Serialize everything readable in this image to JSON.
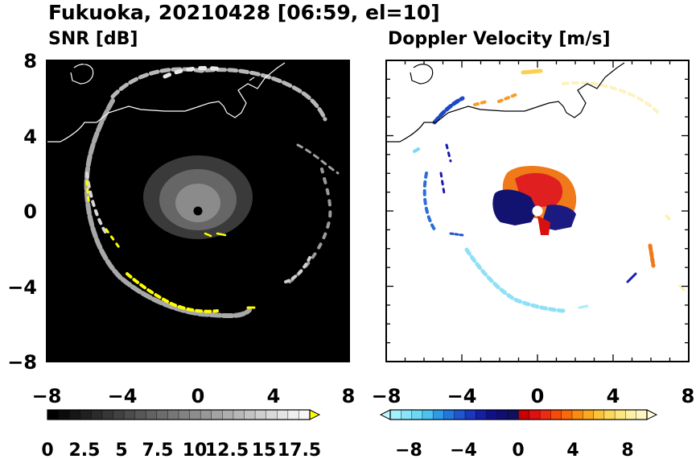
{
  "title": "Fukuoka, 20210428 [06:59, el=10]",
  "chart_data": [
    {
      "type": "heatmap",
      "title": "SNR [dB]",
      "x_ticks": [
        "−8",
        "−4",
        "0",
        "4",
        "8"
      ],
      "y_ticks": [
        "8",
        "4",
        "0",
        "−4",
        "−8"
      ],
      "xlim": [
        -8,
        8
      ],
      "ylim": [
        -8,
        8
      ],
      "background": "#000000",
      "colorbar": {
        "labels": [
          "0",
          "2.5",
          "5",
          "7.5",
          "10",
          "12.5",
          "15",
          "17.5"
        ],
        "range": [
          0,
          18
        ],
        "extend": "max",
        "extend_color": "#ffff00",
        "colors": [
          "#000000",
          "#0b0b0b",
          "#161616",
          "#202020",
          "#2b2b2b",
          "#363636",
          "#414141",
          "#4c4c4c",
          "#575757",
          "#626262",
          "#6c6c6c",
          "#777777",
          "#828282",
          "#8d8d8d",
          "#989898",
          "#a3a3a3",
          "#aeaeae",
          "#b8b8b8",
          "#c3c3c3",
          "#cecece",
          "#d9d9d9",
          "#e4e4e4",
          "#efefef",
          "#f7f7f7"
        ]
      }
    },
    {
      "type": "heatmap",
      "title": "Doppler Velocity [m/s]",
      "x_ticks": [
        "−8",
        "−4",
        "0",
        "4",
        "8"
      ],
      "y_ticks": [],
      "xlim": [
        -8,
        8
      ],
      "ylim": [
        -8,
        8
      ],
      "background": "#ffffff",
      "colorbar": {
        "labels": [
          "−8",
          "−4",
          "0",
          "4",
          "8"
        ],
        "range": [
          -10,
          10
        ],
        "extend": "both",
        "extend_low_color": "#bdf6ff",
        "extend_high_color": "#ffffd9",
        "colors": [
          "#a4f0ff",
          "#87e4fb",
          "#6bd8f6",
          "#4cc2f0",
          "#2f9be8",
          "#2277dd",
          "#1e55d0",
          "#1a38bf",
          "#141fa6",
          "#10108a",
          "#0f0f72",
          "#101060",
          "#c80000",
          "#e01010",
          "#f02a10",
          "#f84a0a",
          "#fb6a08",
          "#fb8a10",
          "#fba820",
          "#fbc23a",
          "#fbd85a",
          "#fce67e",
          "#fdf0a4",
          "#fef6c2"
        ]
      }
    }
  ]
}
